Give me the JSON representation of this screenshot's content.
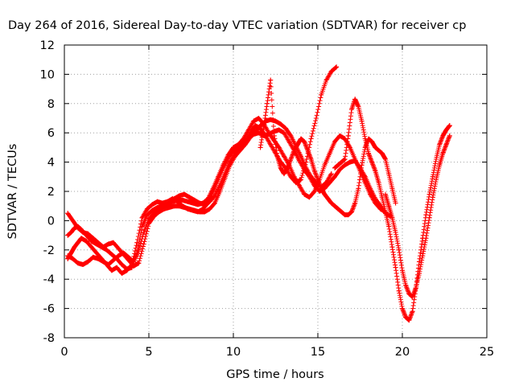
{
  "chart_data": {
    "type": "scatter",
    "title": "Day 264 of 2016, Sidereal Day-to-day VTEC variation (SDTVAR) for receiver cp",
    "xlabel": "GPS time / hours",
    "ylabel": "SDTVAR / TECUs",
    "xlim": [
      0,
      25
    ],
    "ylim": [
      -8,
      12
    ],
    "x_ticks": [
      0,
      5,
      10,
      15,
      20,
      25
    ],
    "y_ticks": [
      -8,
      -6,
      -4,
      -2,
      0,
      2,
      4,
      6,
      8,
      10,
      12
    ],
    "x_tick_labels": [
      "0",
      "5",
      "10",
      "15",
      "20",
      "25"
    ],
    "y_tick_labels": [
      "-8",
      "-6",
      "-4",
      "-2",
      "0",
      "2",
      "4",
      "6",
      "8",
      "10",
      "12"
    ],
    "grid": true,
    "marker": "+",
    "color": "#ff0000",
    "series": [
      {
        "x": [
          0.2,
          0.4,
          0.6,
          0.8,
          1.0,
          1.3,
          1.6,
          1.9,
          2.2,
          2.5,
          2.8,
          3.1,
          3.4,
          3.7,
          4.0,
          4.3,
          4.6,
          4.9,
          5.2,
          5.5,
          5.8,
          6.1,
          6.4,
          6.7,
          7.0,
          7.3,
          7.6,
          7.9,
          8.2,
          8.5,
          8.8,
          9.1,
          9.4,
          9.7,
          10.0,
          10.3,
          10.6,
          10.9,
          11.2,
          11.5,
          11.8,
          12.1,
          12.4,
          12.7,
          13.0,
          13.3,
          13.6,
          13.9,
          14.2,
          14.5,
          14.8,
          15.1,
          15.4,
          15.7,
          16.0,
          16.3,
          16.6,
          16.9,
          17.2,
          17.5,
          17.8,
          18.1,
          18.4,
          18.7,
          19.0,
          19.3
        ],
        "y": [
          -2.6,
          -2.2,
          -1.8,
          -1.5,
          -1.2,
          -1.4,
          -1.8,
          -2.2,
          -2.6,
          -3.0,
          -3.4,
          -3.2,
          -3.6,
          -3.4,
          -3.0,
          -1.5,
          0.2,
          0.8,
          1.1,
          1.3,
          1.2,
          1.3,
          1.5,
          1.3,
          1.0,
          0.8,
          0.7,
          0.6,
          0.8,
          1.2,
          2.0,
          2.8,
          3.6,
          4.3,
          4.8,
          5.0,
          5.3,
          5.6,
          5.9,
          6.0,
          5.8,
          5.9,
          6.1,
          6.2,
          6.0,
          5.4,
          4.8,
          4.1,
          3.5,
          3.0,
          2.4,
          2.0,
          2.2,
          2.6,
          3.0,
          3.5,
          3.8,
          4.0,
          4.1,
          3.6,
          3.0,
          2.2,
          1.5,
          1.0,
          0.5,
          0.3
        ]
      },
      {
        "x": [
          0.2,
          0.4,
          0.6,
          0.8,
          1.0,
          1.3,
          1.6,
          1.9,
          2.2,
          2.5,
          2.8,
          3.1,
          3.4,
          3.7,
          4.0,
          4.3,
          4.6,
          4.9,
          5.2,
          5.5,
          5.8,
          6.1,
          6.4,
          6.7,
          7.0,
          7.3,
          7.6,
          7.9,
          8.2,
          8.5,
          8.8,
          9.1,
          9.4,
          9.7,
          10.0,
          10.3,
          10.6,
          10.9,
          11.2,
          11.5,
          11.8,
          12.1,
          12.4,
          12.7,
          13.0,
          13.3,
          13.6,
          13.9,
          14.2,
          14.5,
          14.8,
          15.1,
          15.4,
          15.7,
          16.0,
          16.3,
          16.6,
          16.9,
          17.2,
          17.5,
          17.8,
          18.1,
          18.4,
          18.7,
          19.0
        ],
        "y": [
          -1.0,
          -0.8,
          -0.5,
          -0.4,
          -0.6,
          -1.0,
          -1.4,
          -1.6,
          -1.8,
          -2.0,
          -2.3,
          -2.6,
          -3.0,
          -3.3,
          -3.2,
          -2.2,
          -0.4,
          0.4,
          0.7,
          0.9,
          1.0,
          1.1,
          1.3,
          1.4,
          1.4,
          1.3,
          1.2,
          1.1,
          1.2,
          1.5,
          2.2,
          3.0,
          3.8,
          4.5,
          5.0,
          5.2,
          5.6,
          6.2,
          6.8,
          7.0,
          6.6,
          6.0,
          5.5,
          5.0,
          4.4,
          3.8,
          3.0,
          2.4,
          1.8,
          1.6,
          2.0,
          2.8,
          3.8,
          4.6,
          5.4,
          5.8,
          5.6,
          5.0,
          4.2,
          3.4,
          2.6,
          1.8,
          1.2,
          0.8,
          0.6
        ]
      },
      {
        "x": [
          0.2,
          0.5,
          0.8,
          1.1,
          1.4,
          1.7,
          2.0,
          2.3,
          2.6,
          2.9,
          3.2,
          3.5,
          3.8,
          4.1,
          4.4,
          4.7,
          5.0,
          5.3,
          5.6,
          5.9,
          6.2,
          6.5,
          6.8,
          7.1,
          7.4,
          7.7,
          8.0,
          8.3,
          8.6,
          8.9,
          9.2,
          9.5,
          9.8,
          10.1,
          10.4,
          10.7,
          11.0,
          11.3,
          11.6,
          11.9,
          12.2,
          12.5,
          12.8,
          13.1,
          13.4,
          13.7,
          14.0,
          14.3,
          14.6,
          14.9,
          15.2,
          15.5,
          15.8,
          16.1
        ],
        "y": [
          -2.4,
          -2.6,
          -2.9,
          -3.0,
          -2.8,
          -2.5,
          -2.6,
          -2.8,
          -3.0,
          -2.7,
          -2.4,
          -2.2,
          -2.5,
          -2.8,
          -2.0,
          -0.8,
          0.1,
          0.5,
          0.8,
          1.0,
          1.2,
          1.5,
          1.7,
          1.8,
          1.6,
          1.4,
          1.2,
          1.1,
          1.3,
          1.7,
          2.4,
          3.2,
          4.0,
          4.6,
          5.0,
          5.4,
          6.0,
          6.5,
          6.3,
          5.8,
          5.2,
          4.6,
          4.0,
          3.6,
          3.0,
          2.6,
          2.8,
          4.0,
          5.6,
          7.0,
          8.6,
          9.6,
          10.2,
          10.5
        ]
      },
      {
        "x": [
          0.2,
          0.5,
          0.8,
          1.1,
          1.4,
          1.7,
          2.0,
          2.3,
          2.6,
          2.9,
          3.2,
          3.5,
          3.8,
          4.1,
          4.4,
          4.7,
          5.0,
          5.3,
          5.6,
          5.9,
          6.2,
          6.5,
          6.8,
          7.1,
          7.4,
          7.7,
          8.0,
          8.3,
          8.6,
          8.9,
          9.2,
          9.5,
          9.8,
          10.1,
          10.4,
          10.7,
          11.0,
          11.3,
          11.6,
          11.9,
          12.2,
          12.5,
          12.8,
          13.1,
          13.4,
          13.7,
          14.0,
          14.3,
          14.6,
          14.9,
          15.2,
          15.5,
          15.8
        ],
        "y": [
          0.5,
          0.0,
          -0.5,
          -0.8,
          -0.9,
          -1.2,
          -1.5,
          -1.8,
          -1.6,
          -1.5,
          -1.9,
          -2.3,
          -2.7,
          -3.1,
          -2.9,
          -1.6,
          -0.2,
          0.3,
          0.6,
          0.8,
          0.9,
          1.0,
          1.0,
          0.9,
          0.8,
          0.7,
          0.6,
          0.6,
          0.8,
          1.2,
          2.0,
          2.9,
          3.8,
          4.4,
          4.8,
          5.2,
          5.7,
          6.1,
          6.5,
          6.8,
          6.9,
          6.8,
          6.6,
          6.3,
          5.8,
          5.1,
          4.4,
          3.6,
          3.0,
          2.6,
          2.3,
          2.6,
          3.2
        ]
      },
      {
        "x": [
          11.6,
          11.8,
          12.0,
          12.2,
          12.4,
          12.6,
          12.8,
          13.0,
          13.2,
          13.4,
          13.6,
          13.8,
          14.0,
          14.2,
          14.4,
          14.6,
          14.8,
          15.0,
          15.2,
          15.4,
          15.6,
          15.8,
          16.0,
          16.2,
          16.4,
          16.6,
          16.8,
          17.0,
          17.2,
          17.4,
          17.6,
          17.8,
          18.0,
          18.2,
          18.4,
          18.6,
          18.8,
          19.0,
          19.2,
          19.4,
          19.6
        ],
        "y": [
          5.0,
          6.4,
          8.0,
          9.6,
          6.0,
          4.4,
          3.6,
          3.2,
          3.6,
          4.2,
          4.8,
          5.2,
          5.6,
          5.4,
          4.8,
          4.2,
          3.4,
          2.8,
          2.2,
          1.8,
          1.5,
          1.2,
          1.0,
          0.8,
          0.6,
          0.4,
          0.4,
          0.6,
          1.2,
          2.2,
          3.8,
          5.0,
          5.6,
          5.4,
          5.0,
          4.8,
          4.6,
          4.2,
          3.2,
          2.2,
          1.2
        ]
      },
      {
        "x": [
          16.0,
          16.2,
          16.4,
          16.6,
          16.8,
          17.0,
          17.2,
          17.4,
          17.6,
          17.8,
          18.0,
          18.2,
          18.4,
          18.6,
          18.8,
          19.0,
          19.2,
          19.4,
          19.6,
          19.8,
          20.0,
          20.2,
          20.4,
          20.6,
          20.8,
          21.0,
          21.2,
          21.4,
          21.6,
          21.8,
          22.0,
          22.2,
          22.4,
          22.6,
          22.8
        ],
        "y": [
          3.6,
          3.8,
          4.0,
          4.2,
          5.8,
          7.6,
          8.3,
          7.8,
          6.8,
          5.6,
          4.6,
          4.0,
          3.4,
          2.6,
          1.6,
          0.6,
          -0.4,
          -1.8,
          -3.2,
          -4.8,
          -6.0,
          -6.6,
          -6.8,
          -6.2,
          -4.6,
          -2.8,
          -1.2,
          0.4,
          1.8,
          3.0,
          4.2,
          5.2,
          5.8,
          6.2,
          6.5
        ]
      },
      {
        "x": [
          19.0,
          19.2,
          19.4,
          19.6,
          19.8,
          20.0,
          20.2,
          20.4,
          20.6,
          20.8,
          21.0,
          21.2,
          21.4,
          21.6,
          21.8,
          22.0,
          22.2,
          22.4,
          22.6,
          22.8
        ],
        "y": [
          1.8,
          1.0,
          0.2,
          -0.8,
          -2.0,
          -3.4,
          -4.4,
          -5.0,
          -5.2,
          -4.6,
          -3.6,
          -2.4,
          -1.2,
          0.2,
          1.6,
          2.8,
          3.8,
          4.6,
          5.2,
          5.8
        ]
      }
    ]
  }
}
